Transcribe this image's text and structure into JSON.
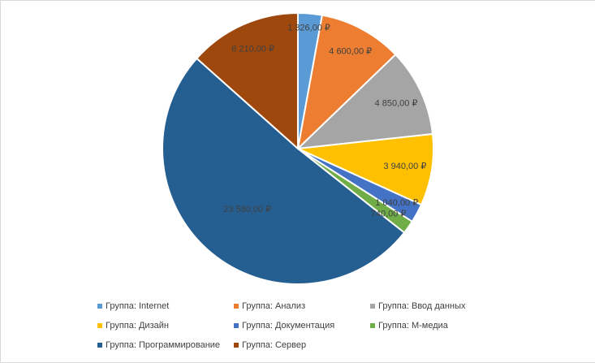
{
  "chart_data": {
    "type": "pie",
    "title": "",
    "currency": "₽",
    "slices": [
      {
        "name": "Группа: Internet",
        "value": 1326,
        "label": "1 326,00 ₽",
        "color": "#5B9BD5"
      },
      {
        "name": "Группа: Анализ",
        "value": 4600,
        "label": "4 600,00 ₽",
        "color": "#ED7D31"
      },
      {
        "name": "Группа: Ввод данных",
        "value": 4850,
        "label": "4 850,00 ₽",
        "color": "#A5A5A5"
      },
      {
        "name": "Группа: Дизайн",
        "value": 3940,
        "label": "3 940,00 ₽",
        "color": "#FFC000"
      },
      {
        "name": "Группа: Документация",
        "value": 1040,
        "label": "1 040,00 ₽",
        "color": "#4472C4"
      },
      {
        "name": "Группа: М-медиа",
        "value": 740,
        "label": "740,00 ₽",
        "color": "#70AD47"
      },
      {
        "name": "Группа: Программирование",
        "value": 23580,
        "label": "23 580,00 ₽",
        "color": "#255E91"
      },
      {
        "name": "Группа: Сервер",
        "value": 6210,
        "label": "6 210,00 ₽",
        "color": "#9E480E"
      }
    ],
    "legend_position": "bottom"
  }
}
